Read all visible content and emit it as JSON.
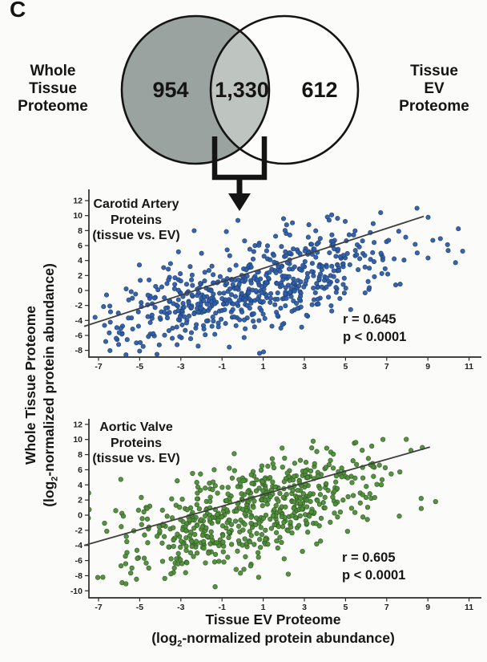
{
  "panel_label": "C",
  "venn": {
    "left_label_lines": [
      "Whole",
      "Tissue",
      "Proteome"
    ],
    "right_label_lines": [
      "Tissue",
      "EV",
      "Proteome"
    ],
    "left_count": "954",
    "overlap_count": "1,330",
    "right_count": "612",
    "left_fill": "#9aa39f",
    "overlap_fill": "#bec5c1",
    "right_fill": "#fdfdfc",
    "outline_color": "#141414"
  },
  "axis_titles": {
    "x_line1": "Tissue EV Proteome",
    "x_line2_pre": "(log",
    "x_line2_sub": "2",
    "x_line2_post": "-normalized protein abundance)",
    "y_line1": "Whole Tissue Proteome",
    "y_line2_pre": "(log",
    "y_line2_sub": "2",
    "y_line2_post": "-normalized protein abundance)"
  },
  "plots": [
    {
      "title_line1": "Carotid Artery",
      "title_line2": "Proteins",
      "title_line3": "(tissue vs. EV)",
      "r_label": "r = 0.645",
      "p_label": "p < 0.0001"
    },
    {
      "title_line1": "Aortic Valve",
      "title_line2": "Proteins",
      "title_line3": "(tissue vs. EV)",
      "r_label": "r = 0.605",
      "p_label": "p < 0.0001"
    }
  ],
  "chart_data": [
    {
      "type": "scatter",
      "title": "Carotid Artery Proteins (tissue vs. EV)",
      "xlabel": "Tissue EV Proteome (log2-normalized protein abundance)",
      "ylabel": "Whole Tissue Proteome (log2-normalized protein abundance)",
      "x_ticks": [
        -7,
        -5,
        -3,
        -1,
        1,
        3,
        5,
        7,
        9,
        11
      ],
      "y_ticks": [
        12,
        10,
        8,
        6,
        4,
        2,
        0,
        -2,
        -4,
        -6,
        -8
      ],
      "xlim": [
        -8.5,
        12.6
      ],
      "ylim": [
        -9,
        13.6
      ],
      "r": 0.645,
      "p": "< 0.0001",
      "n_proteins": 1330,
      "point_color": "#2e5ea6",
      "point_edge_color": "#1d3f78",
      "regression_line": {
        "x1": -7.7,
        "y1": -4.8,
        "x2": 8.8,
        "y2": 9.9,
        "color": "#3f3f3f"
      },
      "points_model": {
        "seed": 7,
        "n_rendered": 640,
        "x_mean": 0.5,
        "x_sd": 3.3,
        "slope": 0.72,
        "intercept": 0.2,
        "noise_sd": 2.9,
        "x_clip": [
          -7.9,
          12.3
        ],
        "y_clip": [
          -8.6,
          13.4
        ]
      }
    },
    {
      "type": "scatter",
      "title": "Aortic Valve Proteins (tissue vs. EV)",
      "xlabel": "Tissue EV Proteome (log2-normalized protein abundance)",
      "ylabel": "Whole Tissue Proteome (log2-normalized protein abundance)",
      "x_ticks": [
        -7,
        -5,
        -3,
        -1,
        1,
        3,
        5,
        7,
        9,
        11
      ],
      "y_ticks": [
        12,
        10,
        8,
        6,
        4,
        2,
        0,
        -2,
        -4,
        -6,
        -8,
        -10
      ],
      "xlim": [
        -8.5,
        12.6
      ],
      "ylim": [
        -11,
        13.4
      ],
      "r": 0.605,
      "p": "< 0.0001",
      "n_proteins": 1330,
      "point_color": "#4f8c3c",
      "point_edge_color": "#2f5c1e",
      "regression_line": {
        "x1": -7.7,
        "y1": -4.0,
        "x2": 9.1,
        "y2": 9.0,
        "color": "#3f3f3f"
      },
      "points_model": {
        "seed": 13,
        "n_rendered": 640,
        "x_mean": 0.2,
        "x_sd": 3.3,
        "slope": 0.72,
        "intercept": 0.1,
        "noise_sd": 3.1,
        "x_clip": [
          -7.9,
          12.3
        ],
        "y_clip": [
          -10.6,
          13.1
        ]
      }
    }
  ]
}
